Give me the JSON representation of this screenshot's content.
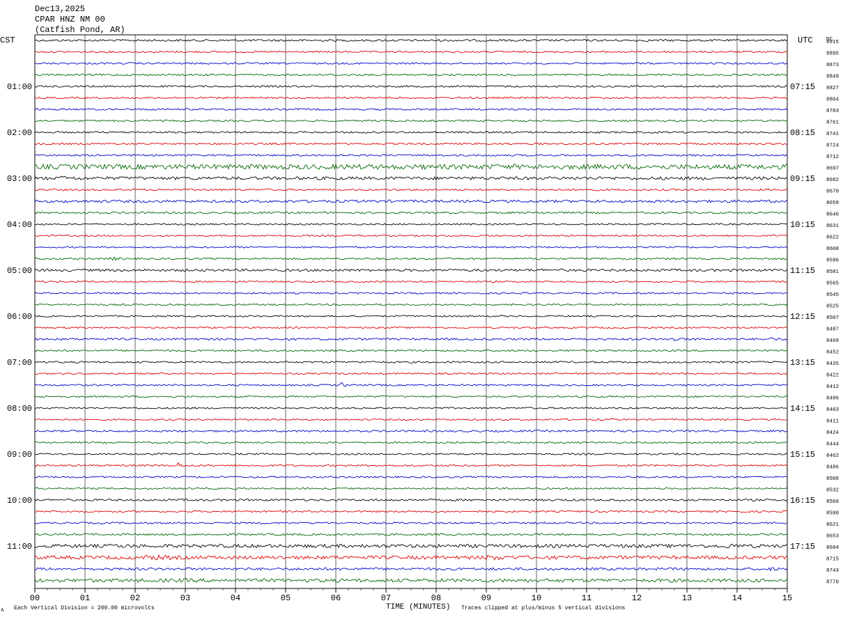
{
  "header": {
    "date": "Dec13,2025",
    "station": "CPAR HNZ NM 00",
    "location": "(Catfish Pond, AR)"
  },
  "left_axis_label": "CST",
  "right_axis_label": "UTC",
  "dc_label": "DC",
  "footer": {
    "scale_note": "Each Vertical Division =  200.00 microvolts",
    "clip_note": "Traces clipped at plus/minus 5 vertical divisions",
    "corner_mark": "∧"
  },
  "colors": {
    "trace_cycle": [
      "#000000",
      "#dd0000",
      "#0000cc",
      "#006600"
    ],
    "grid": "#000000"
  },
  "chart_data": {
    "type": "line",
    "title": "",
    "xlabel": "TIME (MINUTES)",
    "x_ticks": [
      "00",
      "01",
      "02",
      "03",
      "04",
      "05",
      "06",
      "07",
      "08",
      "09",
      "10",
      "11",
      "12",
      "13",
      "14",
      "15"
    ],
    "xlim": [
      0,
      15
    ],
    "rows_per_hour": 4,
    "minutes_per_row": 15,
    "left_hour_labels": [
      "",
      "01:00",
      "02:00",
      "03:00",
      "04:00",
      "05:00",
      "06:00",
      "07:00",
      "08:00",
      "09:00",
      "10:00",
      "11:00"
    ],
    "right_hour_labels": [
      "",
      "07:15",
      "08:15",
      "09:15",
      "10:15",
      "11:15",
      "12:15",
      "13:15",
      "14:15",
      "15:15",
      "16:15",
      "17:15"
    ],
    "dc_offsets": [
      "8915",
      "8895",
      "8873",
      "8849",
      "8827",
      "8804",
      "8783",
      "8761",
      "8741",
      "8724",
      "8712",
      "8697",
      "8682",
      "8670",
      "8659",
      "8646",
      "8631",
      "8622",
      "8608",
      "8596",
      "8581",
      "8565",
      "8545",
      "8525",
      "8507",
      "8487",
      "8469",
      "8452",
      "8435",
      "8422",
      "8412",
      "8406",
      "8403",
      "8411",
      "8424",
      "8444",
      "8462",
      "8486",
      "8508",
      "8532",
      "8560",
      "8590",
      "8621",
      "8653",
      "8684",
      "8715",
      "8743",
      "8770"
    ],
    "trace_noise_level": [
      1.5,
      1.3,
      1.3,
      1.3,
      1.3,
      1.3,
      1.3,
      1.3,
      1.3,
      1.3,
      1.3,
      3.5,
      2.2,
      1.4,
      1.9,
      1.4,
      1.2,
      1.2,
      1.2,
      1.3,
      1.8,
      1.2,
      1.2,
      1.2,
      1.2,
      1.2,
      1.5,
      1.3,
      1.3,
      1.2,
      1.2,
      1.2,
      1.2,
      1.2,
      1.4,
      1.2,
      1.2,
      1.3,
      1.2,
      1.2,
      1.5,
      1.3,
      1.3,
      1.4,
      2.5,
      2.5,
      1.8,
      2.5
    ],
    "events": [
      {
        "row": 11,
        "minute": 3.5,
        "duration": 7.5,
        "amp": 2.5
      },
      {
        "row": 11,
        "minute": 10.8,
        "duration": 1.5,
        "amp": 2.2
      },
      {
        "row": 12,
        "minute": 0.5,
        "duration": 0.8,
        "amp": 3.5
      },
      {
        "row": 19,
        "minute": 1.5,
        "duration": 0.3,
        "amp": 3.0
      },
      {
        "row": 26,
        "minute": 12.7,
        "duration": 0.15,
        "amp": 7.0
      },
      {
        "row": 26,
        "minute": 14.6,
        "duration": 0.4,
        "amp": 3.0
      },
      {
        "row": 30,
        "minute": 6.1,
        "duration": 0.1,
        "amp": 5.0
      },
      {
        "row": 37,
        "minute": 2.85,
        "duration": 0.1,
        "amp": 5.0
      },
      {
        "row": 44,
        "minute": 1.5,
        "duration": 2.0,
        "amp": 3.0
      },
      {
        "row": 44,
        "minute": 13.8,
        "duration": 0.3,
        "amp": 4.5
      },
      {
        "row": 45,
        "minute": 2.2,
        "duration": 1.2,
        "amp": 4.0
      },
      {
        "row": 45,
        "minute": 5.5,
        "duration": 1.5,
        "amp": 2.2
      },
      {
        "row": 45,
        "minute": 9.0,
        "duration": 1.2,
        "amp": 4.0
      },
      {
        "row": 46,
        "minute": 14.6,
        "duration": 0.4,
        "amp": 3.0
      },
      {
        "row": 47,
        "minute": 2.9,
        "duration": 1.5,
        "amp": 3.0
      }
    ]
  }
}
